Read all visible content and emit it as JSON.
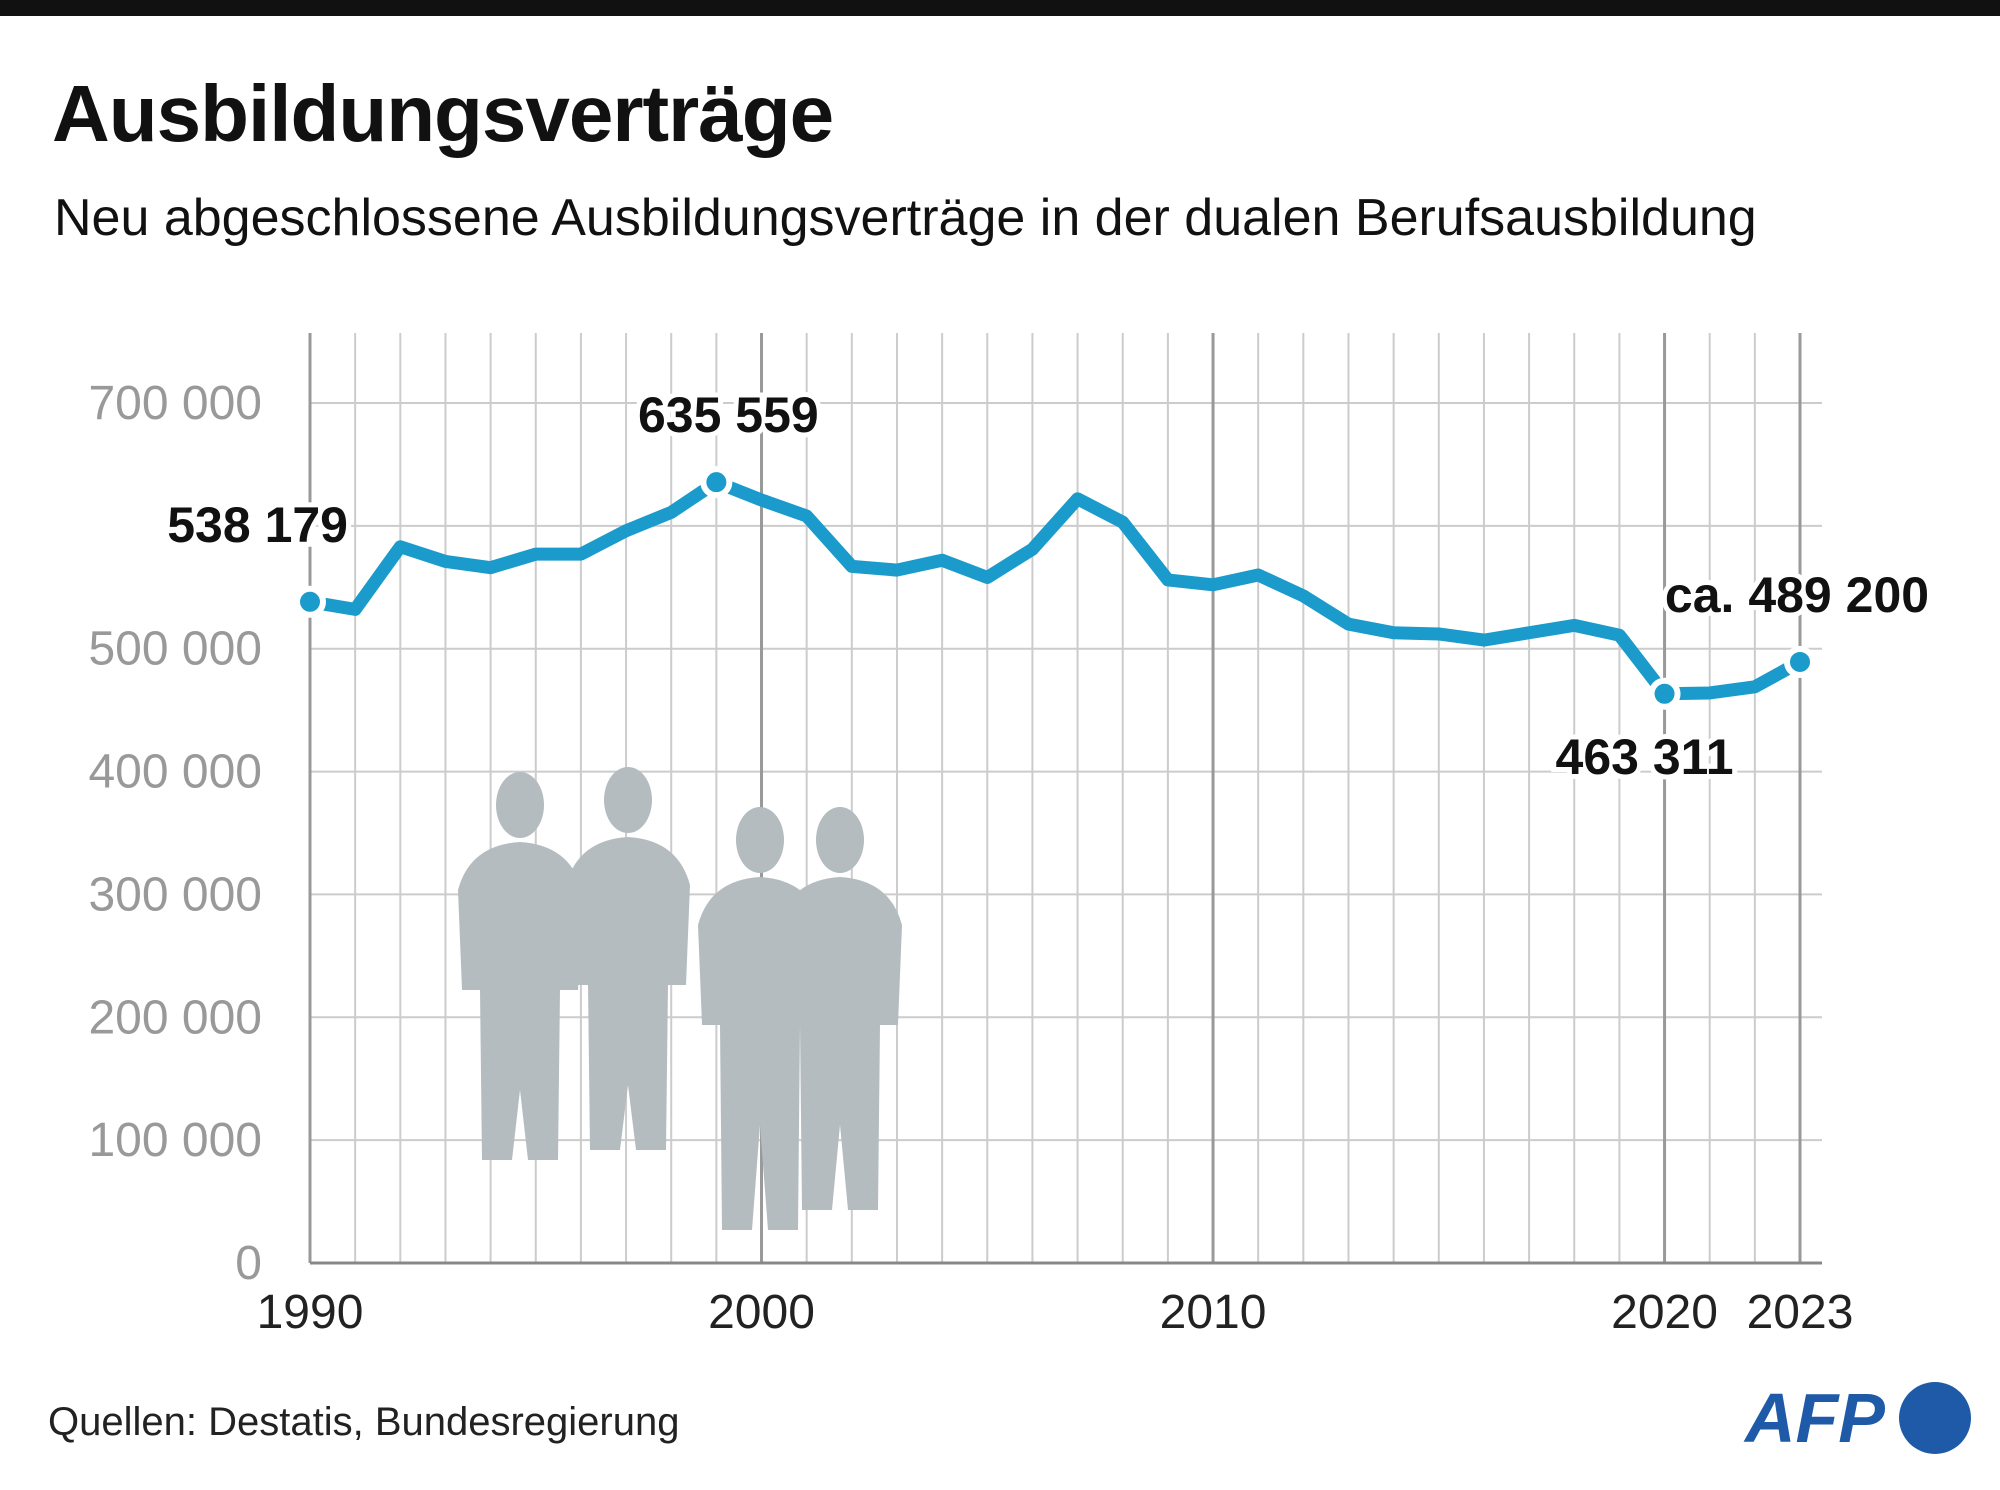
{
  "header": {
    "title": "Ausbildungsverträge",
    "subtitle": "Neu abgeschlossene Ausbildungsverträge in der dualen Berufsausbildung"
  },
  "footer": {
    "source": "Quellen: Destatis, Bundesregierung",
    "logo": "AFP"
  },
  "colors": {
    "line": "#1a9bcb",
    "grid": "#cccccc",
    "silhouette": "#b5bcc0",
    "logo": "#1f5aa8"
  },
  "chart_data": {
    "type": "line",
    "title": "Ausbildungsverträge",
    "subtitle": "Neu abgeschlossene Ausbildungsverträge in der dualen Berufsausbildung",
    "xlim": [
      1990,
      2023
    ],
    "ylim": [
      0,
      700000
    ],
    "grid": true,
    "yticks": [
      0,
      100000,
      200000,
      300000,
      400000,
      500000,
      700000
    ],
    "ytick_labels": [
      "0",
      "100 000",
      "200 000",
      "300 000",
      "400 000",
      "500 000",
      "700 000"
    ],
    "xticks": [
      1990,
      2000,
      2010,
      2020,
      2023
    ],
    "xtick_labels": [
      "1990",
      "2000",
      "2010",
      "2020",
      "2023"
    ],
    "x": [
      1990,
      1991,
      1992,
      1993,
      1994,
      1995,
      1996,
      1997,
      1998,
      1999,
      2000,
      2001,
      2002,
      2003,
      2004,
      2005,
      2006,
      2007,
      2008,
      2009,
      2010,
      2011,
      2012,
      2013,
      2014,
      2015,
      2016,
      2017,
      2018,
      2019,
      2020,
      2021,
      2022,
      2023
    ],
    "values": [
      538179,
      532000,
      583000,
      571000,
      566000,
      577000,
      577000,
      596000,
      611000,
      635559,
      621000,
      608000,
      567000,
      564000,
      572000,
      558000,
      581000,
      622000,
      603000,
      556000,
      552000,
      560000,
      543000,
      520000,
      513000,
      512000,
      507000,
      513000,
      519000,
      511000,
      463311,
      464000,
      469000,
      489200
    ],
    "annotations": [
      {
        "x": 1990,
        "value": 538179,
        "label": "538 179"
      },
      {
        "x": 1999,
        "value": 635559,
        "label": "635 559"
      },
      {
        "x": 2020,
        "value": 463311,
        "label": "463 311"
      },
      {
        "x": 2023,
        "value": 489200,
        "label": "ca. 489 200"
      }
    ]
  }
}
